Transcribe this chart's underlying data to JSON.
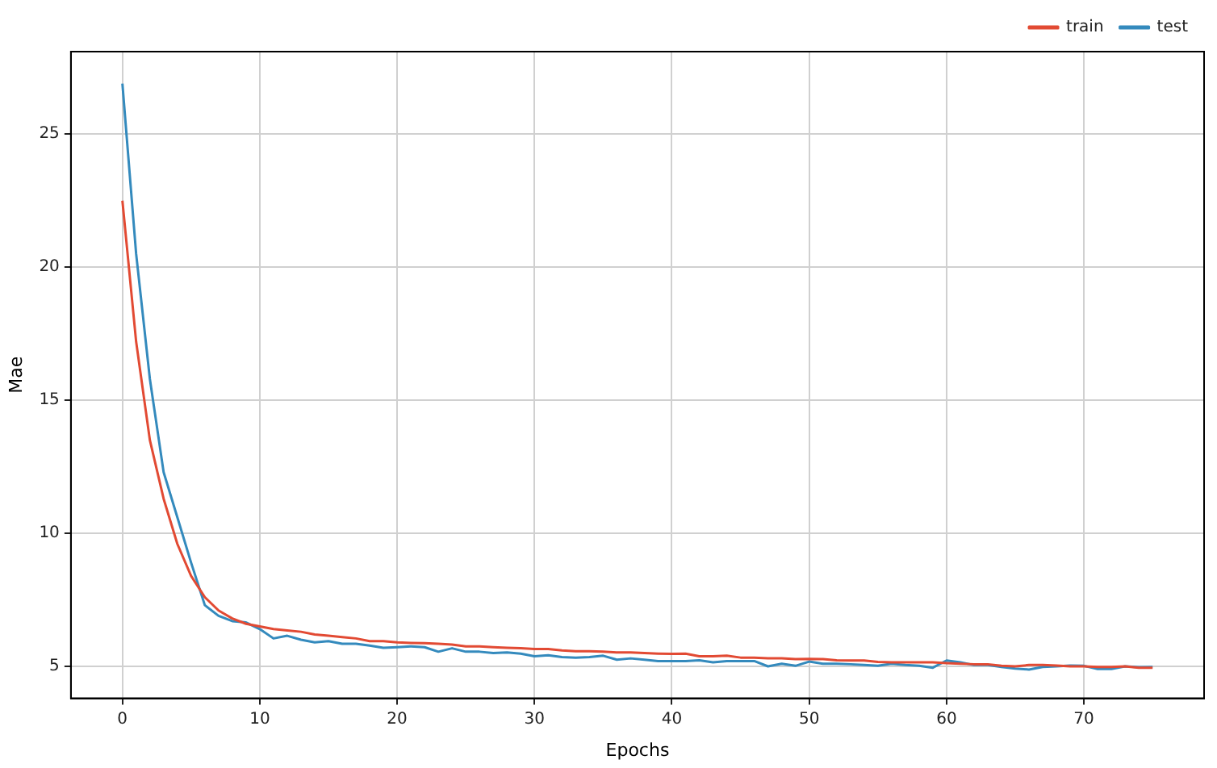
{
  "chart_data": {
    "type": "line",
    "xlabel": "Epochs",
    "ylabel": "Mae",
    "x": [
      0,
      1,
      2,
      3,
      4,
      5,
      6,
      7,
      8,
      9,
      10,
      11,
      12,
      13,
      14,
      15,
      16,
      17,
      18,
      19,
      20,
      21,
      22,
      23,
      24,
      25,
      26,
      27,
      28,
      29,
      30,
      31,
      32,
      33,
      34,
      35,
      36,
      37,
      38,
      39,
      40,
      41,
      42,
      43,
      44,
      45,
      46,
      47,
      48,
      49,
      50,
      51,
      52,
      53,
      54,
      55,
      56,
      57,
      58,
      59,
      60,
      61,
      62,
      63,
      64,
      65,
      66,
      67,
      68,
      69,
      70,
      71,
      72,
      73,
      74,
      75
    ],
    "series": [
      {
        "name": "train",
        "color": "#e24a33",
        "values": [
          22.5,
          17.2,
          13.5,
          11.3,
          9.6,
          8.4,
          7.6,
          7.1,
          6.8,
          6.6,
          6.5,
          6.4,
          6.35,
          6.3,
          6.2,
          6.15,
          6.1,
          6.05,
          5.95,
          5.95,
          5.9,
          5.88,
          5.87,
          5.85,
          5.82,
          5.75,
          5.75,
          5.72,
          5.7,
          5.68,
          5.65,
          5.65,
          5.6,
          5.57,
          5.57,
          5.55,
          5.52,
          5.52,
          5.5,
          5.48,
          5.47,
          5.48,
          5.38,
          5.38,
          5.4,
          5.33,
          5.33,
          5.3,
          5.3,
          5.27,
          5.28,
          5.27,
          5.23,
          5.22,
          5.22,
          5.17,
          5.15,
          5.15,
          5.15,
          5.15,
          5.12,
          5.1,
          5.08,
          5.08,
          5.02,
          5.0,
          5.05,
          5.05,
          5.03,
          5.0,
          5.0,
          4.98,
          4.98,
          5.0,
          4.95,
          4.95
        ]
      },
      {
        "name": "test",
        "color": "#348abd",
        "values": [
          26.9,
          20.5,
          15.8,
          12.3,
          10.6,
          8.9,
          7.3,
          6.9,
          6.7,
          6.65,
          6.4,
          6.05,
          6.15,
          6.0,
          5.9,
          5.95,
          5.85,
          5.85,
          5.78,
          5.7,
          5.72,
          5.75,
          5.72,
          5.55,
          5.68,
          5.55,
          5.55,
          5.5,
          5.52,
          5.48,
          5.38,
          5.42,
          5.35,
          5.33,
          5.35,
          5.4,
          5.25,
          5.3,
          5.25,
          5.2,
          5.2,
          5.2,
          5.23,
          5.15,
          5.2,
          5.2,
          5.2,
          5.0,
          5.1,
          5.02,
          5.18,
          5.1,
          5.1,
          5.08,
          5.05,
          5.02,
          5.1,
          5.05,
          5.02,
          4.95,
          5.22,
          5.15,
          5.05,
          5.05,
          4.98,
          4.92,
          4.88,
          4.98,
          5.0,
          5.03,
          5.02,
          4.9,
          4.9,
          5.0,
          4.97,
          4.98
        ]
      }
    ],
    "xlim": [
      -3.75,
      78.75
    ],
    "xticks": [
      0,
      10,
      20,
      30,
      40,
      50,
      60,
      70
    ],
    "ylim": [
      3.8,
      28.1
    ],
    "yticks": [
      5,
      10,
      15,
      20,
      25
    ],
    "grid": true,
    "legend": "top right",
    "marker": "none",
    "line_style": "solid"
  }
}
